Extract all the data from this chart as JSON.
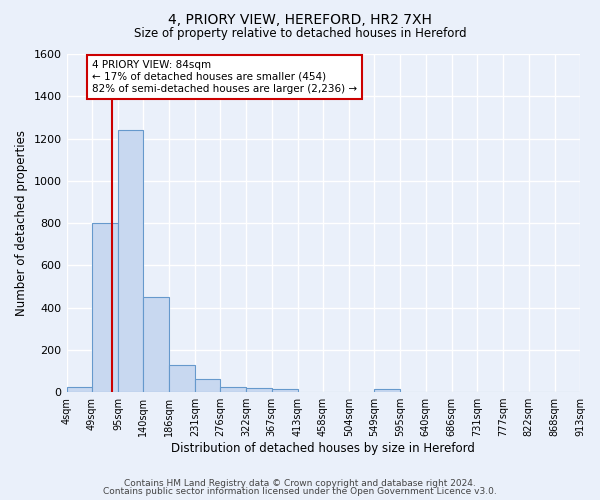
{
  "title1": "4, PRIORY VIEW, HEREFORD, HR2 7XH",
  "title2": "Size of property relative to detached houses in Hereford",
  "xlabel": "Distribution of detached houses by size in Hereford",
  "ylabel": "Number of detached properties",
  "bin_edges": [
    4,
    49,
    95,
    140,
    186,
    231,
    276,
    322,
    367,
    413,
    458,
    504,
    549,
    595,
    640,
    686,
    731,
    777,
    822,
    868,
    913
  ],
  "bar_heights": [
    25,
    800,
    1240,
    450,
    130,
    60,
    25,
    20,
    15,
    0,
    0,
    0,
    15,
    0,
    0,
    0,
    0,
    0,
    0,
    0
  ],
  "bar_color": "#c8d8f0",
  "bar_edge_color": "#6699cc",
  "bar_edge_width": 0.8,
  "property_size": 84,
  "red_line_color": "#cc0000",
  "annotation_text": "4 PRIORY VIEW: 84sqm\n← 17% of detached houses are smaller (454)\n82% of semi-detached houses are larger (2,236) →",
  "annotation_box_color": "#ffffff",
  "annotation_box_edge_color": "#cc0000",
  "ylim": [
    0,
    1600
  ],
  "yticks": [
    0,
    200,
    400,
    600,
    800,
    1000,
    1200,
    1400,
    1600
  ],
  "background_color": "#eaf0fa",
  "grid_color": "#ffffff",
  "footer1": "Contains HM Land Registry data © Crown copyright and database right 2024.",
  "footer2": "Contains public sector information licensed under the Open Government Licence v3.0."
}
